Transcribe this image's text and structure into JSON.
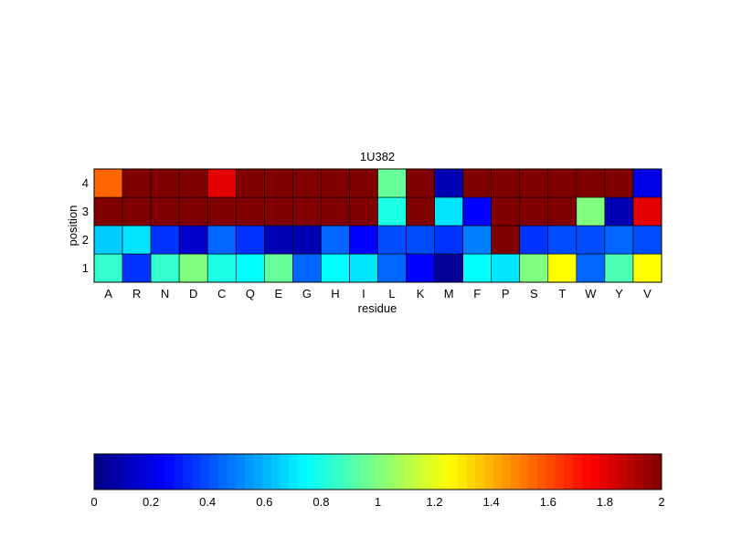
{
  "chart_data": {
    "type": "heatmap",
    "title": "1U382",
    "xlabel": "residue",
    "ylabel": "position",
    "x_categories": [
      "A",
      "R",
      "N",
      "D",
      "C",
      "Q",
      "E",
      "G",
      "H",
      "I",
      "L",
      "K",
      "M",
      "F",
      "P",
      "S",
      "T",
      "W",
      "Y",
      "V"
    ],
    "y_categories": [
      "1",
      "2",
      "3",
      "4"
    ],
    "values": [
      [
        0.85,
        0.35,
        0.85,
        1.0,
        0.8,
        0.75,
        0.95,
        0.45,
        0.75,
        0.7,
        0.45,
        0.25,
        0.05,
        0.75,
        0.7,
        1.0,
        1.25,
        0.45,
        0.9,
        1.25
      ],
      [
        0.65,
        0.7,
        0.35,
        0.15,
        0.45,
        0.35,
        0.1,
        0.1,
        0.45,
        0.25,
        0.4,
        0.4,
        0.35,
        0.5,
        2.0,
        0.35,
        0.4,
        0.4,
        0.45,
        0.4
      ],
      [
        2.0,
        2.0,
        2.0,
        2.0,
        2.0,
        2.0,
        2.0,
        2.0,
        2.0,
        2.0,
        0.8,
        2.0,
        0.7,
        0.25,
        2.0,
        2.0,
        2.0,
        1.0,
        0.1,
        1.8
      ],
      [
        1.55,
        2.0,
        2.0,
        2.0,
        1.8,
        2.0,
        2.0,
        2.0,
        2.0,
        2.0,
        0.95,
        2.0,
        0.1,
        2.0,
        2.0,
        2.0,
        2.0,
        2.0,
        2.0,
        0.2
      ]
    ],
    "colorscale": "jet",
    "clim": [
      0,
      2
    ],
    "colorbar": {
      "orientation": "horizontal",
      "placement": "bottom",
      "ticks": [
        "0",
        "0.2",
        "0.4",
        "0.6",
        "0.8",
        "1",
        "1.2",
        "1.4",
        "1.6",
        "1.8",
        "2"
      ]
    },
    "grid": false
  }
}
